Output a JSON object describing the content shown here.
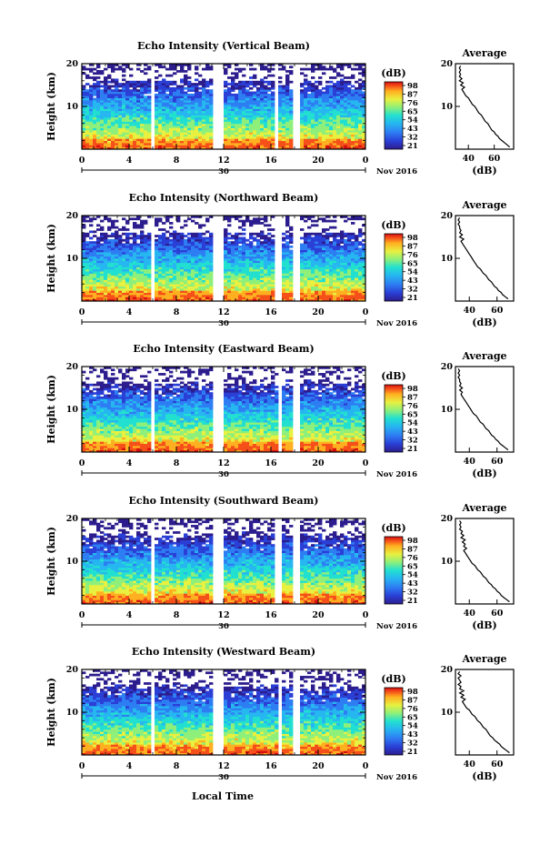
{
  "figure": {
    "date_label": "Nov 2016",
    "x_axis_label": "Local Time",
    "y_axis_label": "Height (km)",
    "colorbar_unit": "(dB)",
    "colorbar_ticks": [
      "98",
      "87",
      "76",
      "65",
      "54",
      "43",
      "32",
      "21"
    ],
    "profile_title": "Average",
    "profile_xlabel": "(dB)",
    "day_label": "30",
    "colors": {
      "colormap": [
        "#2c1d8e",
        "#2a3fd6",
        "#2e7ef3",
        "#26b6f0",
        "#22e0d0",
        "#8ef07a",
        "#e8f040",
        "#ffb020",
        "#f5501a",
        "#d80f10"
      ]
    }
  },
  "chart_data": [
    {
      "type": "heatmap",
      "title": "Echo Intensity (Vertical Beam)",
      "xlabel": "",
      "ylabel": "Height (km)",
      "xlim": [
        0,
        24
      ],
      "ylim": [
        0,
        20
      ],
      "x_ticks": [
        "0",
        "4",
        "8",
        "12",
        "16",
        "20",
        "0"
      ],
      "y_ticks": [
        "20",
        "10"
      ],
      "x_ticks_detected": [
        "0",
        "4",
        "8",
        "12",
        "16",
        "20",
        "0"
      ],
      "colorbar_range_db": [
        21,
        98
      ],
      "data_gaps_hours": [
        [
          5.8,
          6.3
        ],
        [
          11.0,
          12.1
        ],
        [
          16.2,
          16.7
        ],
        [
          17.7,
          18.6
        ]
      ],
      "description_top_km": 18,
      "profile": {
        "title": "Average",
        "xlabel": "(dB)",
        "x_ticks": [
          "40",
          "60"
        ],
        "xlim": [
          30,
          75
        ],
        "y_ticks": [
          "20",
          "10"
        ],
        "ylim": [
          0,
          20
        ],
        "points": [
          [
            72,
            0.5
          ],
          [
            70,
            1
          ],
          [
            68,
            1.5
          ],
          [
            66,
            2
          ],
          [
            64,
            2.5
          ],
          [
            63,
            3
          ],
          [
            61,
            3.5
          ],
          [
            60,
            4
          ],
          [
            58,
            4.5
          ],
          [
            57,
            5
          ],
          [
            56,
            5.5
          ],
          [
            55,
            6
          ],
          [
            53,
            6.5
          ],
          [
            52,
            7
          ],
          [
            51,
            7.5
          ],
          [
            50,
            8
          ],
          [
            48,
            8.5
          ],
          [
            47,
            9
          ],
          [
            46,
            9.5
          ],
          [
            45,
            10
          ],
          [
            43,
            10.5
          ],
          [
            42,
            11
          ],
          [
            41,
            11.5
          ],
          [
            40,
            12
          ],
          [
            38,
            12.5
          ],
          [
            37,
            13
          ],
          [
            36,
            13.5
          ],
          [
            35,
            14
          ],
          [
            37,
            14.5
          ],
          [
            34,
            15
          ],
          [
            36,
            15.5
          ],
          [
            33,
            16
          ],
          [
            35,
            16.5
          ],
          [
            33,
            17
          ],
          [
            34,
            17.5
          ],
          [
            33,
            18
          ],
          [
            34,
            18.5
          ],
          [
            33,
            19
          ],
          [
            34,
            19.5
          ]
        ]
      }
    },
    {
      "type": "heatmap",
      "title": "Echo Intensity (Northward Beam)",
      "xlabel": "",
      "ylabel": "Height (km)",
      "xlim": [
        0,
        24
      ],
      "ylim": [
        0,
        20
      ],
      "x_ticks": [
        "0",
        "4",
        "8",
        "12",
        "16",
        "20",
        "0"
      ],
      "y_ticks": [
        "20",
        "10"
      ],
      "colorbar_range_db": [
        21,
        98
      ],
      "data_gaps_hours": [
        [
          5.8,
          6.3
        ],
        [
          11.0,
          12.1
        ],
        [
          16.4,
          16.9
        ],
        [
          17.7,
          18.6
        ]
      ],
      "profile": {
        "title": "Average",
        "xlabel": "(dB)",
        "x_ticks": [
          "40",
          "60"
        ],
        "xlim": [
          30,
          72
        ],
        "y_ticks": [
          "20",
          "10"
        ],
        "ylim": [
          0,
          20
        ],
        "points": [
          [
            68,
            0.5
          ],
          [
            66,
            1
          ],
          [
            64,
            1.5
          ],
          [
            63,
            2
          ],
          [
            61,
            2.5
          ],
          [
            60,
            3
          ],
          [
            58,
            3.5
          ],
          [
            57,
            4
          ],
          [
            56,
            4.5
          ],
          [
            54,
            5
          ],
          [
            53,
            5.5
          ],
          [
            52,
            6
          ],
          [
            50,
            6.5
          ],
          [
            49,
            7
          ],
          [
            48,
            7.5
          ],
          [
            46,
            8
          ],
          [
            45,
            8.5
          ],
          [
            44,
            9
          ],
          [
            43,
            9.5
          ],
          [
            42,
            10
          ],
          [
            41,
            10.5
          ],
          [
            40,
            11
          ],
          [
            39,
            11.5
          ],
          [
            38,
            12
          ],
          [
            37,
            12.5
          ],
          [
            36,
            13
          ],
          [
            35,
            13.5
          ],
          [
            34,
            14
          ],
          [
            36,
            14.5
          ],
          [
            33,
            15
          ],
          [
            35,
            15.5
          ],
          [
            33,
            16
          ],
          [
            34,
            16.5
          ],
          [
            33,
            17
          ],
          [
            33,
            17.5
          ],
          [
            32,
            18
          ],
          [
            33,
            18.5
          ],
          [
            32,
            19
          ],
          [
            33,
            19.5
          ]
        ]
      }
    },
    {
      "type": "heatmap",
      "title": "Echo Intensity (Eastward Beam)",
      "xlabel": "",
      "ylabel": "Height (km)",
      "xlim": [
        0,
        24
      ],
      "ylim": [
        0,
        20
      ],
      "x_ticks": [
        "0",
        "4",
        "8",
        "12",
        "16",
        "20",
        "0"
      ],
      "y_ticks": [
        "20",
        "10"
      ],
      "colorbar_range_db": [
        21,
        98
      ],
      "data_gaps_hours": [
        [
          5.8,
          6.3
        ],
        [
          11.0,
          12.1
        ],
        [
          16.6,
          17.0
        ],
        [
          17.7,
          18.6
        ]
      ],
      "profile": {
        "title": "Average",
        "xlabel": "(dB)",
        "x_ticks": [
          "40",
          "60"
        ],
        "xlim": [
          30,
          72
        ],
        "y_ticks": [
          "20",
          "10"
        ],
        "ylim": [
          0,
          20
        ],
        "points": [
          [
            68,
            0.5
          ],
          [
            66,
            1
          ],
          [
            64,
            1.5
          ],
          [
            62,
            2
          ],
          [
            61,
            2.5
          ],
          [
            59,
            3
          ],
          [
            58,
            3.5
          ],
          [
            56,
            4
          ],
          [
            55,
            4.5
          ],
          [
            54,
            5
          ],
          [
            52,
            5.5
          ],
          [
            51,
            6
          ],
          [
            50,
            6.5
          ],
          [
            48,
            7
          ],
          [
            47,
            7.5
          ],
          [
            46,
            8
          ],
          [
            45,
            8.5
          ],
          [
            43,
            9
          ],
          [
            42,
            9.5
          ],
          [
            41,
            10
          ],
          [
            40,
            10.5
          ],
          [
            39,
            11
          ],
          [
            38,
            11.5
          ],
          [
            37,
            12
          ],
          [
            36,
            12.5
          ],
          [
            35,
            13
          ],
          [
            34,
            13.5
          ],
          [
            35,
            14
          ],
          [
            33,
            14.5
          ],
          [
            35,
            15
          ],
          [
            33,
            15.5
          ],
          [
            34,
            16
          ],
          [
            33,
            16.5
          ],
          [
            33,
            17
          ],
          [
            32,
            17.5
          ],
          [
            33,
            18
          ],
          [
            32,
            18.5
          ],
          [
            33,
            19
          ],
          [
            32,
            19.5
          ]
        ]
      }
    },
    {
      "type": "heatmap",
      "title": "Echo Intensity (Southward Beam)",
      "xlabel": "",
      "ylabel": "Height (km)",
      "xlim": [
        0,
        24
      ],
      "ylim": [
        0,
        20
      ],
      "x_ticks": [
        "0",
        "4",
        "8",
        "12",
        "16",
        "20",
        "0"
      ],
      "y_ticks": [
        "20",
        "10"
      ],
      "colorbar_range_db": [
        21,
        98
      ],
      "data_gaps_hours": [
        [
          5.8,
          6.3
        ],
        [
          11.0,
          12.1
        ],
        [
          16.4,
          16.9
        ],
        [
          17.7,
          18.6
        ]
      ],
      "profile": {
        "title": "Average",
        "xlabel": "(dB)",
        "x_ticks": [
          "40",
          "60"
        ],
        "xlim": [
          30,
          72
        ],
        "y_ticks": [
          "20",
          "10"
        ],
        "ylim": [
          0,
          20
        ],
        "points": [
          [
            69,
            0.5
          ],
          [
            67,
            1
          ],
          [
            65,
            1.5
          ],
          [
            63,
            2
          ],
          [
            62,
            2.5
          ],
          [
            60,
            3
          ],
          [
            59,
            3.5
          ],
          [
            57,
            4
          ],
          [
            56,
            4.5
          ],
          [
            54,
            5
          ],
          [
            53,
            5.5
          ],
          [
            52,
            6
          ],
          [
            50,
            6.5
          ],
          [
            49,
            7
          ],
          [
            48,
            7.5
          ],
          [
            46,
            8
          ],
          [
            45,
            8.5
          ],
          [
            44,
            9
          ],
          [
            42,
            9.5
          ],
          [
            41,
            10
          ],
          [
            40,
            10.5
          ],
          [
            39,
            11
          ],
          [
            38,
            11.5
          ],
          [
            37,
            12
          ],
          [
            36,
            12.5
          ],
          [
            38,
            13
          ],
          [
            36,
            13.5
          ],
          [
            37,
            14
          ],
          [
            35,
            14.5
          ],
          [
            37,
            15
          ],
          [
            34,
            15.5
          ],
          [
            36,
            16
          ],
          [
            34,
            16.5
          ],
          [
            35,
            17
          ],
          [
            33,
            17.5
          ],
          [
            34,
            18
          ],
          [
            33,
            18.5
          ],
          [
            34,
            19
          ],
          [
            33,
            19.5
          ]
        ]
      }
    },
    {
      "type": "heatmap",
      "title": "Echo Intensity (Westward Beam)",
      "xlabel": "Local Time",
      "ylabel": "Height (km)",
      "xlim": [
        0,
        24
      ],
      "ylim": [
        0,
        20
      ],
      "x_ticks": [
        "0",
        "4",
        "8",
        "12",
        "16",
        "20",
        "0"
      ],
      "y_ticks": [
        "20",
        "10"
      ],
      "colorbar_range_db": [
        21,
        98
      ],
      "data_gaps_hours": [
        [
          5.8,
          6.3
        ],
        [
          11.0,
          12.1
        ],
        [
          16.6,
          17.0
        ],
        [
          17.7,
          18.6
        ]
      ],
      "profile": {
        "title": "Average",
        "xlabel": "(dB)",
        "x_ticks": [
          "40",
          "60"
        ],
        "xlim": [
          30,
          72
        ],
        "y_ticks": [
          "20",
          "10"
        ],
        "ylim": [
          0,
          20
        ],
        "points": [
          [
            69,
            0.5
          ],
          [
            67,
            1
          ],
          [
            65,
            1.5
          ],
          [
            63,
            2
          ],
          [
            62,
            2.5
          ],
          [
            60,
            3
          ],
          [
            58,
            3.5
          ],
          [
            57,
            4
          ],
          [
            55,
            4.5
          ],
          [
            54,
            5
          ],
          [
            53,
            5.5
          ],
          [
            52,
            6
          ],
          [
            50,
            6.5
          ],
          [
            49,
            7
          ],
          [
            48,
            7.5
          ],
          [
            46,
            8
          ],
          [
            45,
            8.5
          ],
          [
            44,
            9
          ],
          [
            42,
            9.5
          ],
          [
            41,
            10
          ],
          [
            40,
            10.5
          ],
          [
            38,
            11
          ],
          [
            37,
            11.5
          ],
          [
            36,
            12
          ],
          [
            35,
            12.5
          ],
          [
            37,
            13
          ],
          [
            34,
            13.5
          ],
          [
            36,
            14
          ],
          [
            33,
            14.5
          ],
          [
            36,
            15
          ],
          [
            33,
            15.5
          ],
          [
            34,
            16
          ],
          [
            32,
            16.5
          ],
          [
            34,
            17
          ],
          [
            33,
            17.5
          ],
          [
            32,
            18
          ],
          [
            34,
            18.5
          ],
          [
            32,
            19
          ],
          [
            33,
            19.5
          ]
        ]
      }
    }
  ]
}
